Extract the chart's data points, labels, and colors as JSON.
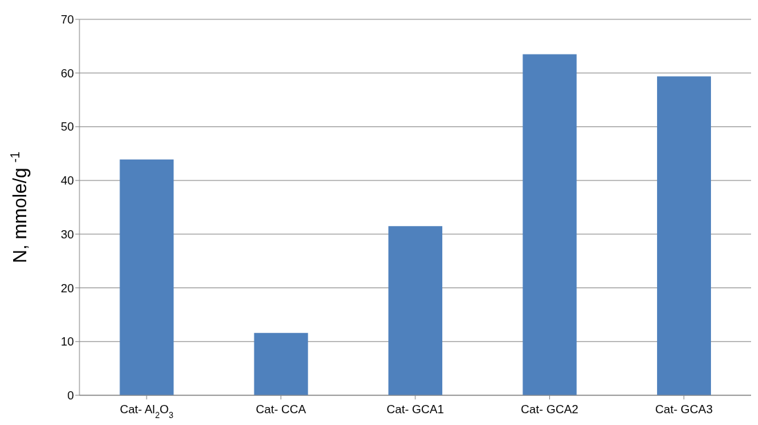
{
  "chart_data": {
    "type": "bar",
    "categories": [
      "Cat- Al$_{2}$O$_{3}$",
      "Cat- CCA",
      "Cat- GCA1",
      "Cat- GCA2",
      "Cat- GCA3"
    ],
    "values": [
      43.9,
      11.6,
      31.5,
      63.5,
      59.4
    ],
    "color": "#4f81bd",
    "ylabel": "N, mmole/g $^{-1}$",
    "ylim": [
      0,
      70
    ],
    "yticks": [
      0,
      10,
      20,
      30,
      40,
      50,
      60,
      70
    ],
    "grid": "y",
    "legend": false
  }
}
